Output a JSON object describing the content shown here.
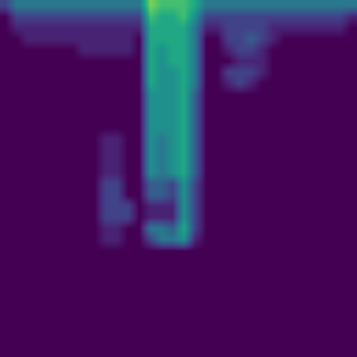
{
  "chart_data": {
    "type": "heatmap",
    "color": "viridis",
    "tick_labels": false,
    "color_range": [
      0,
      10
    ],
    "cells": [
      [
        2,
        4,
        4,
        4,
        4,
        4,
        4,
        4,
        4,
        4,
        4,
        4,
        4,
        8,
        7,
        7,
        7,
        6,
        4,
        4,
        4,
        4,
        4,
        4,
        4,
        4,
        4,
        4,
        4,
        4,
        4,
        4
      ],
      [
        0,
        2,
        2,
        2,
        2,
        2,
        2,
        2,
        2,
        2,
        2,
        2,
        2,
        7,
        6,
        6,
        7,
        5,
        2,
        2,
        2,
        2,
        2,
        2,
        2,
        2,
        2,
        2,
        2,
        2,
        2,
        1
      ],
      [
        0,
        1,
        1,
        1,
        1,
        1,
        1,
        1,
        1,
        1,
        1,
        1,
        1,
        6,
        6,
        6,
        6,
        4,
        1,
        1,
        2,
        2,
        2,
        2,
        1,
        1,
        1,
        1,
        1,
        1,
        1,
        0
      ],
      [
        0,
        0,
        1,
        1,
        1,
        1,
        1,
        1,
        1,
        1,
        1,
        1,
        0,
        6,
        6,
        6,
        6,
        4,
        0,
        0,
        2,
        2,
        3,
        2,
        1,
        0,
        0,
        0,
        0,
        0,
        0,
        0
      ],
      [
        0,
        0,
        0,
        0,
        0,
        0,
        0,
        1,
        1,
        1,
        1,
        1,
        0,
        6,
        5,
        6,
        6,
        4,
        0,
        0,
        1,
        2,
        2,
        1,
        0,
        0,
        0,
        0,
        0,
        0,
        0,
        0
      ],
      [
        0,
        0,
        0,
        0,
        0,
        0,
        0,
        0,
        0,
        0,
        0,
        0,
        0,
        6,
        5,
        6,
        6,
        4,
        0,
        0,
        0,
        1,
        1,
        1,
        0,
        0,
        0,
        0,
        0,
        0,
        0,
        0
      ],
      [
        0,
        0,
        0,
        0,
        0,
        0,
        0,
        0,
        0,
        0,
        0,
        0,
        0,
        6,
        5,
        5,
        6,
        4,
        0,
        0,
        2,
        2,
        2,
        1,
        0,
        0,
        0,
        0,
        0,
        0,
        0,
        0
      ],
      [
        0,
        0,
        0,
        0,
        0,
        0,
        0,
        0,
        0,
        0,
        0,
        0,
        0,
        6,
        5,
        5,
        6,
        4,
        0,
        0,
        1,
        2,
        1,
        0,
        0,
        0,
        0,
        0,
        0,
        0,
        0,
        0
      ],
      [
        0,
        0,
        0,
        0,
        0,
        0,
        0,
        0,
        0,
        0,
        0,
        0,
        0,
        5,
        5,
        5,
        6,
        3,
        0,
        0,
        0,
        0,
        0,
        0,
        0,
        0,
        0,
        0,
        0,
        0,
        0,
        0
      ],
      [
        0,
        0,
        0,
        0,
        0,
        0,
        0,
        0,
        0,
        0,
        0,
        0,
        0,
        5,
        5,
        5,
        6,
        3,
        0,
        0,
        0,
        0,
        0,
        0,
        0,
        0,
        0,
        0,
        0,
        0,
        0,
        0
      ],
      [
        0,
        0,
        0,
        0,
        0,
        0,
        0,
        0,
        0,
        0,
        0,
        0,
        0,
        5,
        5,
        5,
        6,
        3,
        0,
        0,
        0,
        0,
        0,
        0,
        0,
        0,
        0,
        0,
        0,
        0,
        0,
        0
      ],
      [
        0,
        0,
        0,
        0,
        0,
        0,
        0,
        0,
        0,
        0,
        0,
        0,
        0,
        5,
        5,
        5,
        6,
        3,
        0,
        0,
        0,
        0,
        0,
        0,
        0,
        0,
        0,
        0,
        0,
        0,
        0,
        0
      ],
      [
        0,
        0,
        0,
        0,
        0,
        0,
        0,
        0,
        0,
        1,
        1,
        0,
        0,
        5,
        4,
        5,
        6,
        3,
        0,
        0,
        0,
        0,
        0,
        0,
        0,
        0,
        0,
        0,
        0,
        0,
        0,
        0
      ],
      [
        0,
        0,
        0,
        0,
        0,
        0,
        0,
        0,
        0,
        1,
        1,
        0,
        0,
        5,
        4,
        5,
        6,
        3,
        0,
        0,
        0,
        0,
        0,
        0,
        0,
        0,
        0,
        0,
        0,
        0,
        0,
        0
      ],
      [
        0,
        0,
        0,
        0,
        0,
        0,
        0,
        0,
        0,
        1,
        1,
        0,
        0,
        5,
        4,
        5,
        6,
        3,
        0,
        0,
        0,
        0,
        0,
        0,
        0,
        0,
        0,
        0,
        0,
        0,
        0,
        0
      ],
      [
        0,
        0,
        0,
        0,
        0,
        0,
        0,
        0,
        0,
        1,
        1,
        0,
        0,
        5,
        4,
        5,
        6,
        3,
        0,
        0,
        0,
        0,
        0,
        0,
        0,
        0,
        0,
        0,
        0,
        0,
        0,
        0
      ],
      [
        0,
        0,
        0,
        0,
        0,
        0,
        0,
        0,
        0,
        2,
        2,
        0,
        0,
        3,
        3,
        2,
        5,
        2,
        0,
        0,
        0,
        0,
        0,
        0,
        0,
        0,
        0,
        0,
        0,
        0,
        0,
        0
      ],
      [
        0,
        0,
        0,
        0,
        0,
        0,
        0,
        0,
        0,
        2,
        2,
        0,
        0,
        3,
        3,
        2,
        5,
        2,
        0,
        0,
        0,
        0,
        0,
        0,
        0,
        0,
        0,
        0,
        0,
        0,
        0,
        0
      ],
      [
        0,
        0,
        0,
        0,
        0,
        0,
        0,
        0,
        0,
        2,
        2,
        2,
        0,
        1,
        1,
        1,
        5,
        2,
        0,
        0,
        0,
        0,
        0,
        0,
        0,
        0,
        0,
        0,
        0,
        0,
        0,
        0
      ],
      [
        0,
        0,
        0,
        0,
        0,
        0,
        0,
        0,
        0,
        2,
        2,
        2,
        0,
        1,
        1,
        1,
        5,
        2,
        0,
        0,
        0,
        0,
        0,
        0,
        0,
        0,
        0,
        0,
        0,
        0,
        0,
        0
      ],
      [
        0,
        0,
        0,
        0,
        0,
        0,
        0,
        0,
        0,
        1,
        1,
        0,
        0,
        4,
        4,
        3,
        6,
        2,
        0,
        0,
        0,
        0,
        0,
        0,
        0,
        0,
        0,
        0,
        0,
        0,
        0,
        0
      ],
      [
        0,
        0,
        0,
        0,
        0,
        0,
        0,
        0,
        0,
        1,
        1,
        0,
        0,
        2,
        4,
        4,
        5,
        1,
        0,
        0,
        0,
        0,
        0,
        0,
        0,
        0,
        0,
        0,
        0,
        0,
        0,
        0
      ],
      [
        0,
        0,
        0,
        0,
        0,
        0,
        0,
        0,
        0,
        0,
        0,
        0,
        0,
        0,
        0,
        0,
        0,
        0,
        0,
        0,
        0,
        0,
        0,
        0,
        0,
        0,
        0,
        0,
        0,
        0,
        0,
        0
      ],
      [
        0,
        0,
        0,
        0,
        0,
        0,
        0,
        0,
        0,
        0,
        0,
        0,
        0,
        0,
        0,
        0,
        0,
        0,
        0,
        0,
        0,
        0,
        0,
        0,
        0,
        0,
        0,
        0,
        0,
        0,
        0,
        0
      ],
      [
        0,
        0,
        0,
        0,
        0,
        0,
        0,
        0,
        0,
        0,
        0,
        0,
        0,
        0,
        0,
        0,
        0,
        0,
        0,
        0,
        0,
        0,
        0,
        0,
        0,
        0,
        0,
        0,
        0,
        0,
        0,
        0
      ],
      [
        0,
        0,
        0,
        0,
        0,
        0,
        0,
        0,
        0,
        0,
        0,
        0,
        0,
        0,
        0,
        0,
        0,
        0,
        0,
        0,
        0,
        0,
        0,
        0,
        0,
        0,
        0,
        0,
        0,
        0,
        0,
        0
      ],
      [
        0,
        0,
        0,
        0,
        0,
        0,
        0,
        0,
        0,
        0,
        0,
        0,
        0,
        0,
        0,
        0,
        0,
        0,
        0,
        0,
        0,
        0,
        0,
        0,
        0,
        0,
        0,
        0,
        0,
        0,
        0,
        0
      ],
      [
        0,
        0,
        0,
        0,
        0,
        0,
        0,
        0,
        0,
        0,
        0,
        0,
        0,
        0,
        0,
        0,
        0,
        0,
        0,
        0,
        0,
        0,
        0,
        0,
        0,
        0,
        0,
        0,
        0,
        0,
        0,
        0
      ],
      [
        0,
        0,
        0,
        0,
        0,
        0,
        0,
        0,
        0,
        0,
        0,
        0,
        0,
        0,
        0,
        0,
        0,
        0,
        0,
        0,
        0,
        0,
        0,
        0,
        0,
        0,
        0,
        0,
        0,
        0,
        0,
        0
      ],
      [
        0,
        0,
        0,
        0,
        0,
        0,
        0,
        0,
        0,
        0,
        0,
        0,
        0,
        0,
        0,
        0,
        0,
        0,
        0,
        0,
        0,
        0,
        0,
        0,
        0,
        0,
        0,
        0,
        0,
        0,
        0,
        0
      ],
      [
        0,
        0,
        0,
        0,
        0,
        0,
        0,
        0,
        0,
        0,
        0,
        0,
        0,
        0,
        0,
        0,
        0,
        0,
        0,
        0,
        0,
        0,
        0,
        0,
        0,
        0,
        0,
        0,
        0,
        0,
        0,
        0
      ],
      [
        0,
        0,
        0,
        0,
        0,
        0,
        0,
        0,
        0,
        0,
        0,
        0,
        0,
        0,
        0,
        0,
        0,
        0,
        0,
        0,
        0,
        0,
        0,
        0,
        0,
        0,
        0,
        0,
        0,
        0,
        0,
        0
      ]
    ]
  }
}
